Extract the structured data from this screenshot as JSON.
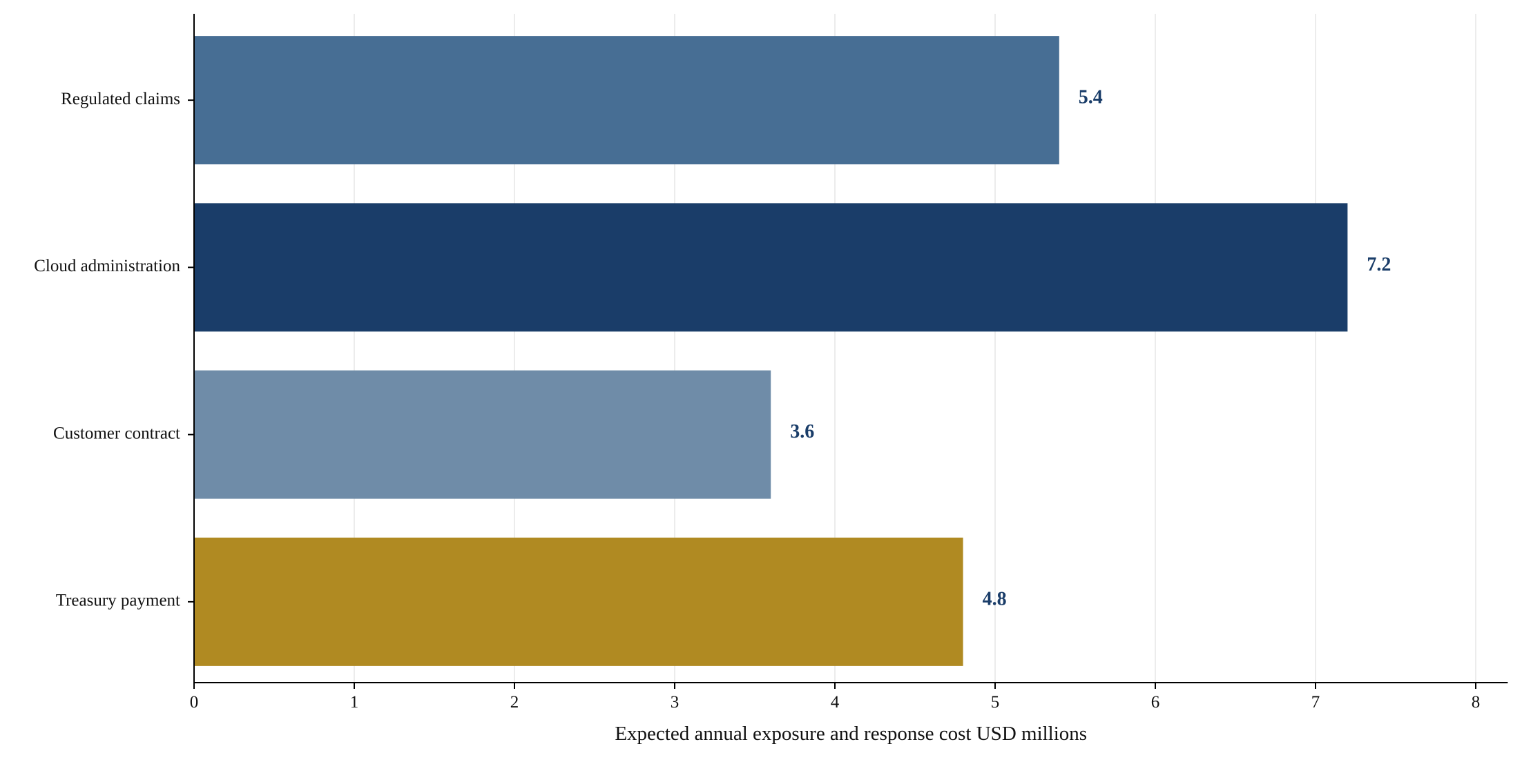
{
  "chart_data": {
    "type": "bar",
    "orientation": "horizontal",
    "categories": [
      "Regulated claims",
      "Cloud administration",
      "Customer contract",
      "Treasury payment"
    ],
    "values": [
      5.4,
      7.2,
      3.6,
      4.8
    ],
    "value_labels": [
      "5.4",
      "7.2",
      "3.6",
      "4.8"
    ],
    "bar_colors": [
      "#476e94",
      "#1a3d69",
      "#6f8ca8",
      "#b08a22"
    ],
    "value_label_color": "#1a3d69",
    "xlabel": "Expected annual exposure and response cost USD millions",
    "ylabel": "",
    "title": "",
    "xlim": [
      0,
      8.2
    ],
    "xticks": [
      0,
      1,
      2,
      3,
      4,
      5,
      6,
      7,
      8
    ],
    "xtick_labels": [
      "0",
      "1",
      "2",
      "3",
      "4",
      "5",
      "6",
      "7",
      "8"
    ],
    "grid": "vertical",
    "legend": "none"
  }
}
